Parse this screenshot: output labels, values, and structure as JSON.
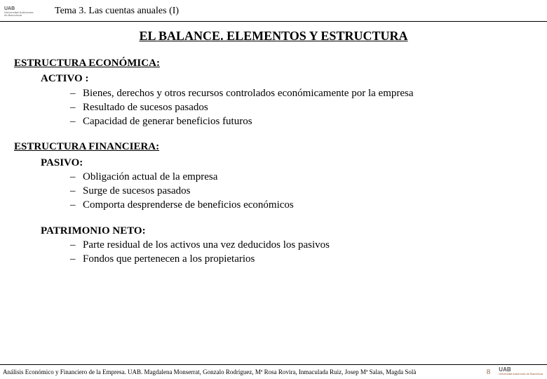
{
  "header": {
    "logo_text": "UAB",
    "logo_sub1": "Universitat Autònoma",
    "logo_sub2": "de Barcelona",
    "title": "Tema 3. Las cuentas anuales (I)"
  },
  "main_title": "EL BALANCE. ELEMENTOS Y ESTRUCTURA",
  "section1": {
    "heading": "ESTRUCTURA ECONÓMICA:",
    "sub": "ACTIVO :",
    "items": [
      "Bienes, derechos y otros recursos controlados económicamente por la empresa",
      "Resultado de sucesos pasados",
      "Capacidad de generar beneficios futuros"
    ]
  },
  "section2": {
    "heading": "ESTRUCTURA FINANCIERA:",
    "sub_a": "PASIVO:",
    "items_a": [
      "Obligación actual de la empresa",
      "Surge de sucesos pasados",
      "Comporta desprenderse de beneficios económicos"
    ],
    "sub_b": "PATRIMONIO NETO:",
    "items_b": [
      "Parte residual de los activos una vez deducidos los pasivos",
      "Fondos que pertenecen a los propietarios"
    ]
  },
  "footer": {
    "text": "Análisis Económico y Financiero de la Empresa. UAB. Magdalena Monserrat, Gonzalo Rodríguez, Mª Rosa Rovira, Inmaculada Ruiz, Josep Mª Salas, Magda Solà",
    "page": "8",
    "logo_text": "UAB",
    "logo_sub": "Universitat Autònoma de Barcelona"
  }
}
